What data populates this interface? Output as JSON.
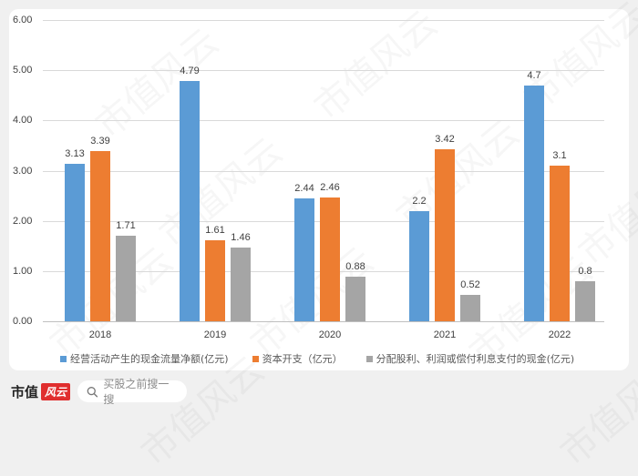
{
  "chart_data": {
    "type": "bar",
    "title": "",
    "xlabel": "",
    "ylabel": "",
    "ylim": [
      0,
      6
    ],
    "yticks": [
      "0.00",
      "1.00",
      "2.00",
      "3.00",
      "4.00",
      "5.00",
      "6.00"
    ],
    "grid": true,
    "legend_position": "bottom",
    "categories": [
      "2018",
      "2019",
      "2020",
      "2021",
      "2022"
    ],
    "series": [
      {
        "name": "经营活动产生的现金流量净额(亿元)",
        "color": "#5b9bd5",
        "values": [
          3.13,
          4.79,
          2.44,
          2.2,
          4.7
        ],
        "labels": [
          "3.13",
          "4.79",
          "2.44",
          "2.2",
          "4.7"
        ]
      },
      {
        "name": "资本开支（亿元）",
        "color": "#ed7d31",
        "values": [
          3.39,
          1.61,
          2.46,
          3.42,
          3.1
        ],
        "labels": [
          "3.39",
          "1.61",
          "2.46",
          "3.42",
          "3.1"
        ]
      },
      {
        "name": "分配股利、利润或偿付利息支付的现金(亿元)",
        "color": "#a5a5a5",
        "values": [
          1.71,
          1.46,
          0.88,
          0.52,
          0.8
        ],
        "labels": [
          "1.71",
          "1.46",
          "0.88",
          "0.52",
          "0.8"
        ]
      }
    ]
  },
  "footer": {
    "brand_text": "市值",
    "brand_badge": "风云",
    "search_icon": "search-icon",
    "search_placeholder": "买股之前搜一搜"
  },
  "watermark": "市值风云"
}
